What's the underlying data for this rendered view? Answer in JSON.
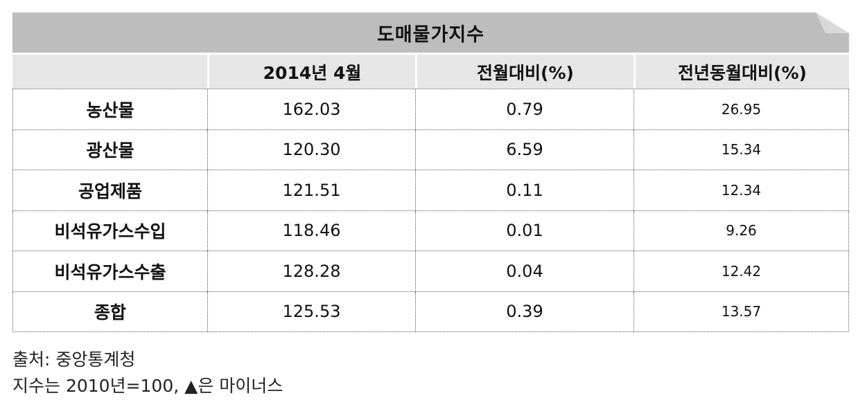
{
  "title": "도매물가지수",
  "columns": [
    "",
    "2014년 4월",
    "전월대비(%)",
    "전년동월대비(%)"
  ],
  "rows": [
    {
      "label": "농산물",
      "value": "162.03",
      "mom": "0.79",
      "yoy": "26.95"
    },
    {
      "label": "광산물",
      "value": "120.30",
      "mom": "6.59",
      "yoy": "15.34"
    },
    {
      "label": "공업제품",
      "value": "121.51",
      "mom": "0.11",
      "yoy": "12.34"
    },
    {
      "label": "비석유가스수입",
      "value": "118.46",
      "mom": "0.01",
      "yoy": "9.26"
    },
    {
      "label": "비석유가스수출",
      "value": "128.28",
      "mom": "0.04",
      "yoy": "12.42"
    },
    {
      "label": "종합",
      "value": "125.53",
      "mom": "0.39",
      "yoy": "13.57"
    }
  ],
  "notes": {
    "source": "출처: 중앙통계청",
    "index": "지수는 2010년=100, ▲은 마이너스"
  }
}
